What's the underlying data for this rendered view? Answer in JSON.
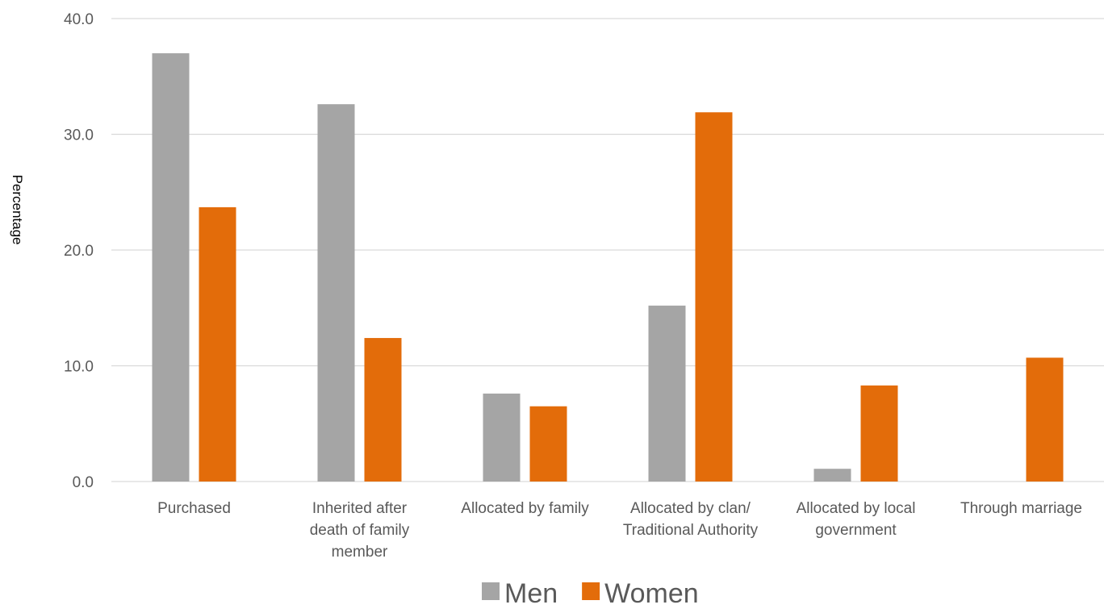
{
  "chart_data": {
    "type": "bar",
    "ylabel": "Percentage",
    "ylim": [
      0,
      40
    ],
    "yticks": [
      "0.0",
      "10.0",
      "20.0",
      "30.0",
      "40.0"
    ],
    "grid": true,
    "legend_position": "bottom",
    "categories": [
      [
        "Purchased"
      ],
      [
        "Inherited after",
        "death of family",
        "member"
      ],
      [
        "Allocated by family"
      ],
      [
        "Allocated by clan/",
        "Traditional Authority"
      ],
      [
        "Allocated by local",
        "government"
      ],
      [
        "Through marriage"
      ]
    ],
    "series": [
      {
        "name": "Men",
        "color": "#a5a5a5",
        "values": [
          37.0,
          32.6,
          7.6,
          15.2,
          1.1,
          0.0
        ]
      },
      {
        "name": "Women",
        "color": "#e36c0a",
        "values": [
          23.7,
          12.4,
          6.5,
          31.9,
          8.3,
          10.7
        ]
      }
    ]
  }
}
